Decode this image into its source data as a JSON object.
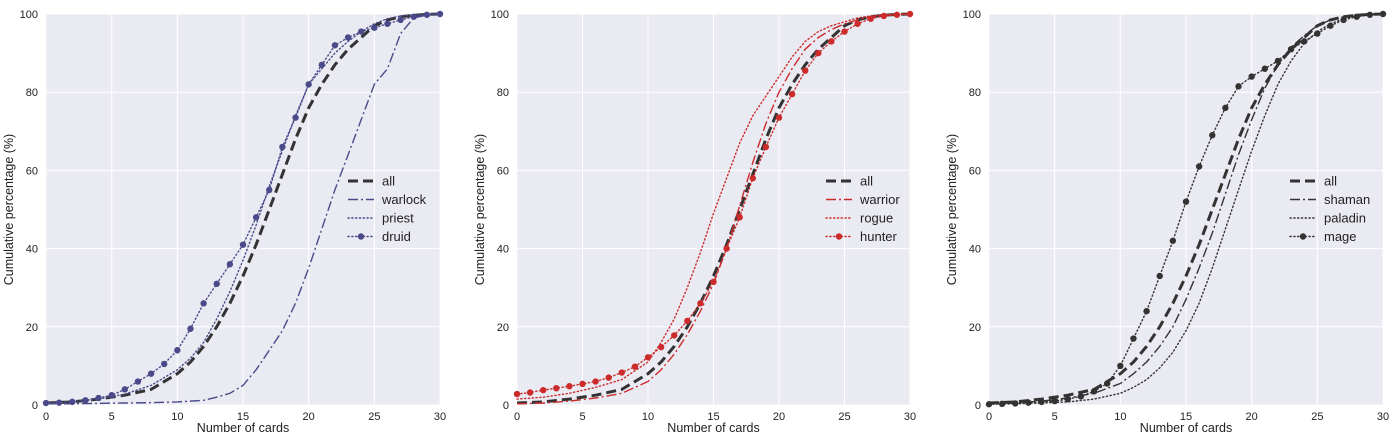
{
  "chart_data": [
    {
      "type": "line",
      "xlabel": "Number of cards",
      "ylabel": "Cumulative percentage (%)",
      "xlim": [
        0,
        30
      ],
      "ylim": [
        0,
        100
      ],
      "xticks": [
        "0",
        "5",
        "10",
        "15",
        "20",
        "25",
        "30"
      ],
      "yticks": [
        "0",
        "20",
        "40",
        "60",
        "80",
        "100"
      ],
      "grid": true,
      "legend": "right",
      "series": [
        {
          "name": "all",
          "color": "#333333",
          "style": "dashed",
          "marker": false,
          "x": [
            0,
            2,
            4,
            6,
            8,
            10,
            11,
            12,
            13,
            14,
            15,
            16,
            17,
            18,
            19,
            20,
            21,
            22,
            23,
            24,
            25,
            26,
            27,
            28,
            29,
            30
          ],
          "y": [
            0.5,
            0.8,
            1.5,
            2.5,
            4,
            8,
            11,
            15,
            20,
            26,
            33,
            41,
            50,
            59,
            68,
            76,
            82,
            87,
            91,
            94,
            97,
            98.5,
            99.3,
            99.7,
            99.9,
            100
          ]
        },
        {
          "name": "warlock",
          "color": "#4a4a8a",
          "style": "dashdot",
          "marker": false,
          "x": [
            0,
            2,
            4,
            6,
            8,
            10,
            12,
            13,
            14,
            15,
            16,
            17,
            18,
            19,
            20,
            21,
            22,
            23,
            24,
            25,
            26,
            27,
            28,
            29,
            30
          ],
          "y": [
            0.3,
            0.3,
            0.4,
            0.5,
            0.6,
            0.8,
            1.2,
            2,
            3,
            5,
            9,
            14,
            19,
            26,
            35,
            45,
            55,
            64,
            73,
            82,
            86,
            95,
            99,
            99.7,
            100
          ]
        },
        {
          "name": "priest",
          "color": "#4a4a8a",
          "style": "dotted",
          "marker": false,
          "x": [
            0,
            2,
            4,
            6,
            8,
            10,
            11,
            12,
            13,
            14,
            15,
            16,
            17,
            18,
            19,
            20,
            21,
            22,
            23,
            24,
            25,
            26,
            27,
            28,
            29,
            30
          ],
          "y": [
            0.5,
            0.8,
            1.5,
            2.8,
            5,
            9,
            12,
            16,
            22,
            29,
            37,
            46,
            56,
            65,
            74,
            82,
            86,
            90,
            93,
            95.5,
            97.5,
            98.8,
            99.5,
            99.8,
            99.9,
            100
          ]
        },
        {
          "name": "druid",
          "color": "#4a4a8a",
          "style": "dotted",
          "marker": true,
          "x": [
            0,
            1,
            2,
            3,
            4,
            5,
            6,
            7,
            8,
            9,
            10,
            11,
            12,
            13,
            14,
            15,
            16,
            17,
            18,
            19,
            20,
            21,
            22,
            23,
            24,
            25,
            26,
            27,
            28,
            29,
            30
          ],
          "y": [
            0.5,
            0.6,
            0.8,
            1.2,
            1.8,
            2.5,
            4,
            6,
            8,
            10.5,
            14,
            19.5,
            26,
            31,
            36,
            41,
            48,
            55,
            66,
            73.5,
            82,
            87,
            92,
            94,
            95.5,
            96.5,
            97.5,
            98.5,
            99.3,
            99.8,
            100
          ]
        }
      ]
    },
    {
      "type": "line",
      "xlabel": "Number of cards",
      "ylabel": "Cumulative percentage (%)",
      "xlim": [
        0,
        30
      ],
      "ylim": [
        0,
        100
      ],
      "xticks": [
        "0",
        "5",
        "10",
        "15",
        "20",
        "25",
        "30"
      ],
      "yticks": [
        "0",
        "20",
        "40",
        "60",
        "80",
        "100"
      ],
      "grid": true,
      "legend": "right",
      "series": [
        {
          "name": "all",
          "color": "#333333",
          "style": "dashed",
          "marker": false,
          "x": [
            0,
            2,
            4,
            6,
            8,
            10,
            11,
            12,
            13,
            14,
            15,
            16,
            17,
            18,
            19,
            20,
            21,
            22,
            23,
            24,
            25,
            26,
            27,
            28,
            29,
            30
          ],
          "y": [
            0.5,
            0.8,
            1.5,
            2.5,
            4,
            8,
            11,
            15,
            20,
            26,
            33,
            41,
            50,
            59,
            68,
            76,
            82,
            87,
            91,
            94,
            97,
            98.5,
            99.3,
            99.7,
            99.9,
            100
          ]
        },
        {
          "name": "warrior",
          "color": "#cc2b2b",
          "style": "dashdot",
          "marker": false,
          "x": [
            0,
            2,
            4,
            6,
            8,
            10,
            11,
            12,
            13,
            14,
            15,
            16,
            17,
            18,
            19,
            20,
            21,
            22,
            23,
            24,
            25,
            26,
            27,
            28,
            29,
            30
          ],
          "y": [
            0.3,
            0.5,
            1,
            1.8,
            3,
            6,
            9,
            13,
            18,
            24,
            31,
            40,
            51,
            62,
            72,
            80,
            86,
            91,
            94,
            96,
            97.5,
            98.5,
            99.3,
            99.7,
            99.9,
            100
          ]
        },
        {
          "name": "rogue",
          "color": "#cc2b2b",
          "style": "dotted",
          "marker": false,
          "x": [
            0,
            2,
            4,
            6,
            8,
            10,
            11,
            12,
            13,
            14,
            15,
            16,
            17,
            18,
            19,
            20,
            21,
            22,
            23,
            24,
            25,
            26,
            27,
            28,
            29,
            30
          ],
          "y": [
            1.5,
            2,
            3,
            4.5,
            6.5,
            11,
            16,
            22,
            30,
            39,
            49,
            58,
            67,
            74,
            79,
            84,
            89,
            93,
            95.5,
            97,
            98,
            99,
            99.5,
            99.8,
            99.9,
            100
          ]
        },
        {
          "name": "hunter",
          "color": "#cc2b2b",
          "style": "dotted",
          "marker": true,
          "x": [
            0,
            1,
            2,
            3,
            4,
            5,
            6,
            7,
            8,
            9,
            10,
            11,
            12,
            13,
            14,
            15,
            16,
            17,
            18,
            19,
            20,
            21,
            22,
            23,
            24,
            25,
            26,
            27,
            28,
            29,
            30
          ],
          "y": [
            2.8,
            3.2,
            3.8,
            4.3,
            4.8,
            5.4,
            6,
            7,
            8.3,
            9.8,
            12.2,
            14.8,
            17.8,
            21.5,
            26,
            31.5,
            40,
            48,
            58,
            66,
            73.5,
            79.5,
            85.5,
            90,
            93,
            95.5,
            97.5,
            98.8,
            99.5,
            99.8,
            100
          ]
        }
      ]
    },
    {
      "type": "line",
      "xlabel": "Number of cards",
      "ylabel": "Cumulative percentage (%)",
      "xlim": [
        0,
        30
      ],
      "ylim": [
        0,
        100
      ],
      "xticks": [
        "0",
        "5",
        "10",
        "15",
        "20",
        "25",
        "30"
      ],
      "yticks": [
        "0",
        "20",
        "40",
        "60",
        "80",
        "100"
      ],
      "grid": true,
      "legend": "right",
      "series": [
        {
          "name": "all",
          "color": "#333333",
          "style": "dashed",
          "marker": false,
          "x": [
            0,
            2,
            4,
            6,
            8,
            10,
            11,
            12,
            13,
            14,
            15,
            16,
            17,
            18,
            19,
            20,
            21,
            22,
            23,
            24,
            25,
            26,
            27,
            28,
            29,
            30
          ],
          "y": [
            0.5,
            0.8,
            1.5,
            2.5,
            4,
            8,
            11,
            15,
            20,
            26,
            33,
            41,
            50,
            59,
            68,
            76,
            82,
            87,
            91,
            94,
            97,
            98.5,
            99.3,
            99.7,
            99.9,
            100
          ]
        },
        {
          "name": "shaman",
          "color": "#333333",
          "style": "dashdot",
          "marker": false,
          "x": [
            0,
            2,
            4,
            6,
            8,
            10,
            11,
            12,
            13,
            14,
            15,
            16,
            17,
            18,
            19,
            20,
            21,
            22,
            23,
            24,
            25,
            26,
            27,
            28,
            29,
            30
          ],
          "y": [
            0.3,
            0.5,
            1,
            1.8,
            3,
            5.5,
            8,
            11,
            15,
            20,
            27,
            35,
            44,
            54,
            64,
            73,
            81,
            87,
            91.5,
            94.5,
            97,
            98.5,
            99.3,
            99.7,
            99.9,
            100
          ]
        },
        {
          "name": "paladin",
          "color": "#333333",
          "style": "dotted",
          "marker": false,
          "x": [
            0,
            2,
            4,
            6,
            8,
            10,
            11,
            12,
            13,
            14,
            15,
            16,
            17,
            18,
            19,
            20,
            21,
            22,
            23,
            24,
            25,
            26,
            27,
            28,
            29,
            30
          ],
          "y": [
            0.2,
            0.3,
            0.5,
            0.8,
            1.5,
            3,
            4.5,
            6.5,
            9.5,
            13.5,
            19,
            26,
            35,
            45,
            55,
            65,
            74,
            82,
            88,
            92.5,
            95.5,
            97.5,
            98.8,
            99.5,
            99.8,
            100
          ]
        },
        {
          "name": "mage",
          "color": "#333333",
          "style": "dotted",
          "marker": true,
          "x": [
            0,
            1,
            2,
            3,
            4,
            5,
            6,
            7,
            8,
            9,
            10,
            11,
            12,
            13,
            14,
            15,
            16,
            17,
            18,
            19,
            20,
            21,
            22,
            23,
            24,
            25,
            26,
            27,
            28,
            29,
            30
          ],
          "y": [
            0.2,
            0.3,
            0.4,
            0.6,
            0.8,
            1,
            1.5,
            2.2,
            3.5,
            5.5,
            10,
            17,
            24,
            33,
            42,
            52,
            61,
            69,
            76,
            81.5,
            84,
            86,
            88,
            91,
            93,
            95,
            97,
            98.5,
            99.3,
            99.8,
            100
          ]
        }
      ]
    }
  ]
}
